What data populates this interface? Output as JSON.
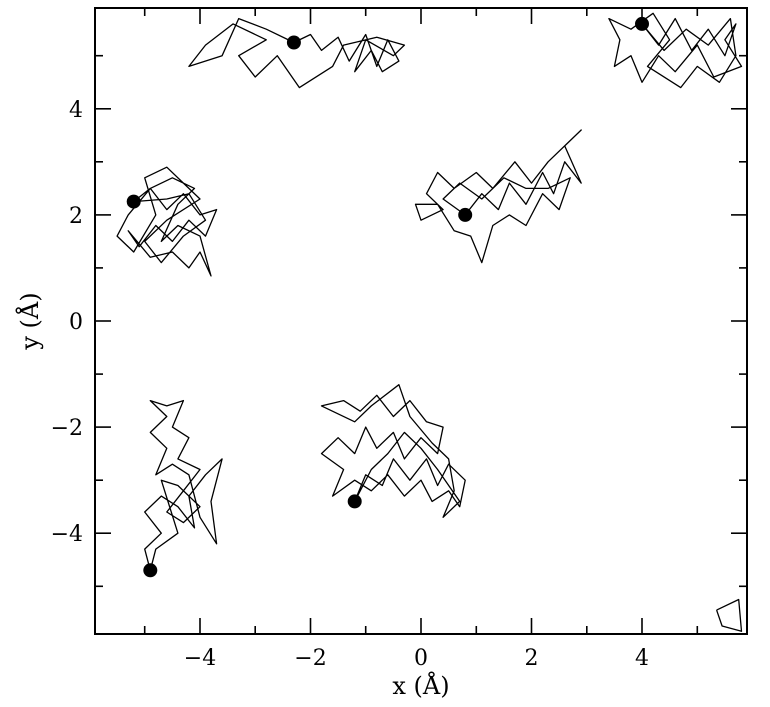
{
  "chart_data": {
    "type": "line",
    "title": "",
    "xlabel": "x (Å)",
    "ylabel": "y (Å)",
    "xlim": [
      -5.9,
      5.9
    ],
    "ylim": [
      -5.9,
      5.9
    ],
    "xticks": [
      -4,
      -2,
      0,
      2,
      4
    ],
    "yticks": [
      -4,
      -2,
      0,
      2,
      4
    ],
    "xtick_labels": [
      "−4",
      "−2",
      "0",
      "2",
      "4"
    ],
    "ytick_labels": [
      "−4",
      "−2",
      "0",
      "2",
      "4"
    ],
    "minor_tick_step": 1,
    "grid": false,
    "legend": "none",
    "series": [
      {
        "marker": [
          -2.3,
          5.25
        ],
        "points": [
          [
            -2.3,
            5.25
          ],
          [
            -2.0,
            5.4
          ],
          [
            -1.8,
            5.1
          ],
          [
            -1.5,
            5.35
          ],
          [
            -1.3,
            4.9
          ],
          [
            -1.0,
            5.4
          ],
          [
            -0.8,
            4.8
          ],
          [
            -0.6,
            5.3
          ],
          [
            -0.4,
            4.9
          ],
          [
            -0.7,
            4.7
          ],
          [
            -0.9,
            5.1
          ],
          [
            -1.2,
            4.7
          ],
          [
            -1.0,
            5.3
          ],
          [
            -0.5,
            5.0
          ],
          [
            -0.3,
            5.2
          ],
          [
            -0.8,
            5.35
          ],
          [
            -1.4,
            5.2
          ],
          [
            -1.6,
            4.8
          ],
          [
            -2.2,
            4.4
          ],
          [
            -2.6,
            5.0
          ],
          [
            -3.0,
            4.6
          ],
          [
            -3.3,
            5.0
          ],
          [
            -2.8,
            5.3
          ],
          [
            -3.4,
            5.6
          ],
          [
            -3.9,
            5.2
          ],
          [
            -4.2,
            4.8
          ],
          [
            -3.6,
            5.0
          ],
          [
            -3.3,
            5.7
          ],
          [
            -2.8,
            5.5
          ],
          [
            -2.3,
            5.25
          ]
        ]
      },
      {
        "marker": [
          4.0,
          5.6
        ],
        "points": [
          [
            4.0,
            5.6
          ],
          [
            4.3,
            5.2
          ],
          [
            4.6,
            5.7
          ],
          [
            4.9,
            5.1
          ],
          [
            5.2,
            5.5
          ],
          [
            5.5,
            5.0
          ],
          [
            5.7,
            5.6
          ],
          [
            5.5,
            5.3
          ],
          [
            5.8,
            4.8
          ],
          [
            5.3,
            4.6
          ],
          [
            5.0,
            5.2
          ],
          [
            4.6,
            4.7
          ],
          [
            4.3,
            5.0
          ],
          [
            4.0,
            4.5
          ],
          [
            3.8,
            5.0
          ],
          [
            3.5,
            4.8
          ],
          [
            3.6,
            5.3
          ],
          [
            3.4,
            5.7
          ],
          [
            3.8,
            5.5
          ],
          [
            4.2,
            5.8
          ],
          [
            4.5,
            5.3
          ],
          [
            4.1,
            4.8
          ],
          [
            4.7,
            4.4
          ],
          [
            5.0,
            4.8
          ],
          [
            5.4,
            4.5
          ],
          [
            5.7,
            5.0
          ],
          [
            5.6,
            5.7
          ],
          [
            5.2,
            5.2
          ],
          [
            4.8,
            5.5
          ],
          [
            4.4,
            5.1
          ],
          [
            4.0,
            5.6
          ]
        ]
      },
      {
        "marker": [
          -5.2,
          2.25
        ],
        "points": [
          [
            -5.2,
            2.25
          ],
          [
            -4.9,
            2.5
          ],
          [
            -4.6,
            2.1
          ],
          [
            -4.3,
            2.4
          ],
          [
            -4.0,
            2.0
          ],
          [
            -3.7,
            2.1
          ],
          [
            -3.9,
            1.6
          ],
          [
            -4.2,
            1.9
          ],
          [
            -4.5,
            1.5
          ],
          [
            -4.8,
            1.8
          ],
          [
            -5.1,
            1.4
          ],
          [
            -5.3,
            1.7
          ],
          [
            -4.9,
            1.2
          ],
          [
            -4.5,
            1.3
          ],
          [
            -4.2,
            1.0
          ],
          [
            -4.0,
            1.3
          ],
          [
            -3.8,
            0.85
          ],
          [
            -4.0,
            1.6
          ],
          [
            -4.4,
            1.8
          ],
          [
            -4.7,
            1.5
          ],
          [
            -4.4,
            2.2
          ],
          [
            -4.1,
            2.5
          ],
          [
            -4.5,
            2.7
          ],
          [
            -4.9,
            2.5
          ],
          [
            -5.3,
            2.0
          ],
          [
            -5.5,
            1.6
          ],
          [
            -5.2,
            1.3
          ],
          [
            -4.8,
            2.0
          ],
          [
            -5.0,
            2.7
          ],
          [
            -4.6,
            2.9
          ],
          [
            -4.3,
            2.6
          ],
          [
            -4.0,
            2.3
          ],
          [
            -4.6,
            1.9
          ],
          [
            -5.0,
            1.5
          ],
          [
            -4.7,
            1.1
          ],
          [
            -4.3,
            1.6
          ],
          [
            -3.9,
            1.9
          ],
          [
            -4.2,
            2.4
          ],
          [
            -4.6,
            2.3
          ],
          [
            -5.2,
            2.25
          ]
        ]
      },
      {
        "marker": [
          0.8,
          2.0
        ],
        "points": [
          [
            0.8,
            2.0
          ],
          [
            1.1,
            2.4
          ],
          [
            1.4,
            2.1
          ],
          [
            1.6,
            2.6
          ],
          [
            1.9,
            2.2
          ],
          [
            2.2,
            2.8
          ],
          [
            2.4,
            2.4
          ],
          [
            2.6,
            3.0
          ],
          [
            2.9,
            2.6
          ],
          [
            2.6,
            3.3
          ],
          [
            2.9,
            3.6
          ],
          [
            2.3,
            3.0
          ],
          [
            2.0,
            2.6
          ],
          [
            1.7,
            3.0
          ],
          [
            1.3,
            2.5
          ],
          [
            1.0,
            2.8
          ],
          [
            0.6,
            2.5
          ],
          [
            0.3,
            2.8
          ],
          [
            0.1,
            2.4
          ],
          [
            0.4,
            2.1
          ],
          [
            0.0,
            1.9
          ],
          [
            -0.1,
            2.2
          ],
          [
            0.3,
            2.2
          ],
          [
            0.6,
            1.7
          ],
          [
            0.9,
            1.6
          ],
          [
            1.1,
            1.1
          ],
          [
            1.3,
            1.8
          ],
          [
            1.6,
            2.0
          ],
          [
            1.9,
            1.8
          ],
          [
            2.2,
            2.4
          ],
          [
            2.5,
            2.1
          ],
          [
            2.7,
            2.7
          ],
          [
            2.3,
            2.5
          ],
          [
            1.9,
            2.5
          ],
          [
            1.5,
            2.7
          ],
          [
            1.1,
            2.3
          ],
          [
            0.7,
            2.6
          ],
          [
            0.4,
            2.3
          ],
          [
            0.8,
            2.0
          ]
        ]
      },
      {
        "marker": [
          -1.2,
          -3.4
        ],
        "points": [
          [
            -1.2,
            -3.4
          ],
          [
            -1.0,
            -2.9
          ],
          [
            -0.7,
            -3.1
          ],
          [
            -0.5,
            -2.6
          ],
          [
            -0.2,
            -3.0
          ],
          [
            0.1,
            -2.6
          ],
          [
            0.3,
            -3.1
          ],
          [
            0.5,
            -2.7
          ],
          [
            0.8,
            -3.0
          ],
          [
            0.7,
            -3.5
          ],
          [
            0.5,
            -3.2
          ],
          [
            0.2,
            -3.4
          ],
          [
            0.0,
            -3.0
          ],
          [
            -0.3,
            -3.3
          ],
          [
            -0.6,
            -2.9
          ],
          [
            -0.9,
            -3.2
          ],
          [
            -1.2,
            -3.0
          ],
          [
            -1.6,
            -3.3
          ],
          [
            -1.4,
            -2.8
          ],
          [
            -1.8,
            -2.5
          ],
          [
            -1.5,
            -2.2
          ],
          [
            -1.2,
            -2.5
          ],
          [
            -1.0,
            -2.0
          ],
          [
            -0.8,
            -2.4
          ],
          [
            -0.5,
            -2.1
          ],
          [
            -0.3,
            -2.6
          ],
          [
            0.0,
            -2.2
          ],
          [
            0.3,
            -2.5
          ],
          [
            0.4,
            -2.0
          ],
          [
            0.1,
            -1.9
          ],
          [
            -0.2,
            -1.5
          ],
          [
            -0.5,
            -1.8
          ],
          [
            -0.8,
            -1.4
          ],
          [
            -1.1,
            -1.7
          ],
          [
            -1.4,
            -1.5
          ],
          [
            -1.8,
            -1.6
          ],
          [
            -1.2,
            -1.9
          ],
          [
            -0.9,
            -1.6
          ],
          [
            -0.4,
            -1.2
          ],
          [
            -0.2,
            -1.8
          ],
          [
            0.2,
            -2.3
          ],
          [
            0.5,
            -2.6
          ],
          [
            0.6,
            -3.2
          ],
          [
            0.4,
            -3.7
          ],
          [
            0.7,
            -3.4
          ],
          [
            0.3,
            -2.8
          ],
          [
            0.0,
            -2.4
          ],
          [
            -0.3,
            -2.1
          ],
          [
            -0.6,
            -2.5
          ],
          [
            -0.9,
            -2.8
          ],
          [
            -1.2,
            -3.4
          ]
        ]
      },
      {
        "marker": [
          -4.9,
          -4.7
        ],
        "points": [
          [
            -4.9,
            -4.7
          ],
          [
            -5.0,
            -4.3
          ],
          [
            -4.7,
            -4.0
          ],
          [
            -5.0,
            -3.6
          ],
          [
            -4.7,
            -3.3
          ],
          [
            -4.4,
            -3.5
          ],
          [
            -4.1,
            -3.9
          ],
          [
            -4.2,
            -3.3
          ],
          [
            -3.9,
            -2.9
          ],
          [
            -3.6,
            -2.6
          ],
          [
            -3.8,
            -3.4
          ],
          [
            -3.7,
            -4.2
          ],
          [
            -4.0,
            -3.7
          ],
          [
            -4.2,
            -2.9
          ],
          [
            -4.5,
            -2.7
          ],
          [
            -4.8,
            -2.9
          ],
          [
            -4.6,
            -2.4
          ],
          [
            -4.9,
            -2.1
          ],
          [
            -4.6,
            -1.8
          ],
          [
            -4.9,
            -1.5
          ],
          [
            -4.6,
            -1.6
          ],
          [
            -4.3,
            -1.5
          ],
          [
            -4.5,
            -2.0
          ],
          [
            -4.2,
            -2.2
          ],
          [
            -4.4,
            -2.6
          ],
          [
            -4.0,
            -2.8
          ],
          [
            -4.3,
            -3.2
          ],
          [
            -4.6,
            -3.6
          ],
          [
            -4.3,
            -3.8
          ],
          [
            -4.0,
            -3.5
          ],
          [
            -4.4,
            -3.1
          ],
          [
            -4.7,
            -3.0
          ],
          [
            -4.4,
            -4.0
          ],
          [
            -4.8,
            -4.3
          ],
          [
            -4.9,
            -4.7
          ]
        ]
      },
      {
        "marker": null,
        "points": [
          [
            5.35,
            -5.45
          ],
          [
            5.75,
            -5.25
          ],
          [
            5.8,
            -5.85
          ],
          [
            5.45,
            -5.75
          ],
          [
            5.35,
            -5.45
          ]
        ]
      }
    ]
  }
}
